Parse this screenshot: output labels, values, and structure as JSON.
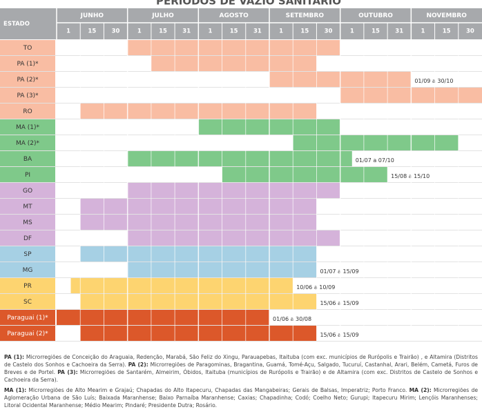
{
  "title": "PERÍODOS DE VAZIO SANITÁRIO",
  "header": {
    "estado": "ESTADO",
    "months": [
      {
        "name": "JUNHO",
        "days": [
          "1",
          "15",
          "30"
        ]
      },
      {
        "name": "JULHO",
        "days": [
          "1",
          "15",
          "31"
        ]
      },
      {
        "name": "AGOSTO",
        "days": [
          "1",
          "15",
          "31"
        ]
      },
      {
        "name": "SETEMBRO",
        "days": [
          "1",
          "15",
          "30"
        ]
      },
      {
        "name": "OUTUBRO",
        "days": [
          "1",
          "15",
          "31"
        ]
      },
      {
        "name": "NOVEMBRO",
        "days": [
          "1",
          "15",
          "30"
        ]
      }
    ]
  },
  "rows": [
    {
      "state": "TO",
      "color": "#f9bda3",
      "start": 3,
      "end": 12
    },
    {
      "state": "PA (1)*",
      "color": "#f9bda3",
      "start": 4,
      "end": 11
    },
    {
      "state": "PA (2)*",
      "color": "#f9bda3",
      "start": 9,
      "end": 15,
      "range_label": "01/09 a 30/10"
    },
    {
      "state": "PA (3)*",
      "color": "#f9bda3",
      "start": 12,
      "end": 18
    },
    {
      "state": "RO",
      "color": "#f9bda3",
      "start": 1,
      "end": 11
    },
    {
      "state": "MA (1)*",
      "color": "#7fc98a",
      "start": 6,
      "end": 12
    },
    {
      "state": "MA (2)*",
      "color": "#7fc98a",
      "start": 10,
      "end": 17
    },
    {
      "state": "BA",
      "color": "#7fc98a",
      "start": 3,
      "end": 12.5,
      "range_label": "01/07 a 07/10"
    },
    {
      "state": "PI",
      "color": "#7fc98a",
      "start": 7,
      "end": 14,
      "range_label": "15/08 a 15/10"
    },
    {
      "state": "GO",
      "color": "#d5b3da",
      "start": 3,
      "end": 12
    },
    {
      "state": "MT",
      "color": "#d5b3da",
      "start": 1,
      "end": 11
    },
    {
      "state": "MS",
      "color": "#d5b3da",
      "start": 1,
      "end": 11
    },
    {
      "state": "DF",
      "color": "#d5b3da",
      "start": 3,
      "end": 12
    },
    {
      "state": "SP",
      "color": "#a6d0e4",
      "start": 1,
      "end": 11
    },
    {
      "state": "MG",
      "color": "#a6d0e4",
      "start": 3,
      "end": 11,
      "range_label": "01/07 a 15/09"
    },
    {
      "state": "PR",
      "color": "#fdd470",
      "start": 0.6,
      "end": 10,
      "range_label": "10/06 a 10/09"
    },
    {
      "state": "SC",
      "color": "#fdd470",
      "start": 1,
      "end": 11,
      "range_label": "15/06 a 15/09"
    },
    {
      "state": "Paraguai (1)*",
      "color": "#dc582a",
      "start": 0,
      "end": 9,
      "range_label": "01/06 a 30/08"
    },
    {
      "state": "Paraguai (2)*",
      "color": "#dc582a",
      "start": 1,
      "end": 11,
      "range_label": "15/06 a 15/09"
    }
  ],
  "notes": [
    [
      {
        "label": "PA (1):",
        "text": " Microrregiões de Conceição do Araguaia, Redenção, Marabá, São Feliz do Xingu, Parauapebas, Itaituba (com exc. municípios de Rurópolis e Trairão) , e Altamira (Distritos de Castelo dos Sonhos e Cachoeira da Serra). "
      },
      {
        "label": "PA (2):",
        "text": " Microrregiões de Paragominas, Bragantina, Guamá, Tomé-Açu, Salgado, Tucuruí, Castanhal, Arari, Belém, Cametá, Furos de Breves e de Portel. "
      },
      {
        "label": "PA (3):",
        "text": " Microrregiões de Santarém, Almeirim, Óbidos, Itaituba (municípios de Rurópolis e Trairão) e de Altamira (com exc. Distritos de Castelo de Sonhos e Cachoeira da Serra)."
      }
    ],
    [
      {
        "label": "MA (1):",
        "text": " Microrregiões de Alto Mearim e Grajaú; Chapadas do Alto Itapecuru, Chapadas das Mangabeiras; Gerais de Balsas, Imperatriz; Porto Franco. "
      },
      {
        "label": "MA (2):",
        "text": " Microrregiões de Aglomeração Urbana de São Luís; Baixada Maranhense; Baixo Parnaíba Maranhense; Caxias; Chapadinha; Codó; Coelho Neto; Gurupi; Itapecuru Mirim; Lençóis Maranhenses; Litoral Ocidental Maranhense; Médio Mearim; Pindaré; Presidente Dutra; Rosário."
      }
    ]
  ]
}
